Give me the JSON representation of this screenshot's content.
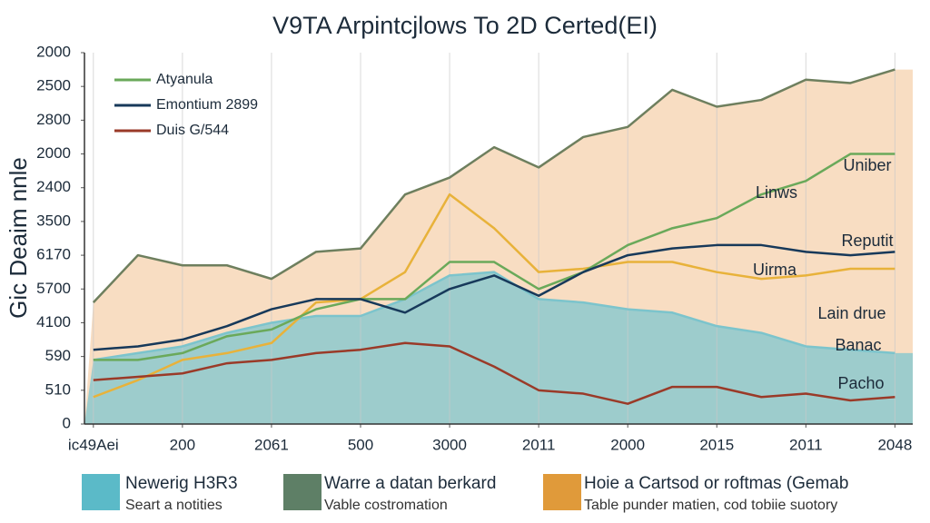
{
  "chart_data": {
    "type": "line",
    "title": "V9TA Arpintcjlows To 2D Certed(EI)",
    "y_label": "Gic Deaim nnle",
    "x": [
      0,
      0.5,
      1,
      1.5,
      2,
      2.5,
      3,
      3.5,
      4,
      4.5,
      5,
      5.5,
      6,
      6.5,
      7,
      7.5,
      8,
      8.5,
      9
    ],
    "xlim": [
      -0.1,
      9.2
    ],
    "xticks": [
      {
        "value": 0,
        "label": "ic49Aei"
      },
      {
        "value": 1,
        "label": "200"
      },
      {
        "value": 2,
        "label": "2061"
      },
      {
        "value": 3,
        "label": "500"
      },
      {
        "value": 4,
        "label": "3000"
      },
      {
        "value": 5,
        "label": "2011"
      },
      {
        "value": 6,
        "label": "2000"
      },
      {
        "value": 7,
        "label": "2015"
      },
      {
        "value": 8,
        "label": "2011"
      },
      {
        "value": 9,
        "label": "2048"
      }
    ],
    "ylim": [
      0,
      11
    ],
    "yticks": [
      {
        "value": 0,
        "label": "0"
      },
      {
        "value": 1,
        "label": "510"
      },
      {
        "value": 2,
        "label": "590"
      },
      {
        "value": 3,
        "label": "4100"
      },
      {
        "value": 4,
        "label": "5700"
      },
      {
        "value": 5,
        "label": "6170"
      },
      {
        "value": 6,
        "label": "3500"
      },
      {
        "value": 7,
        "label": "2400"
      },
      {
        "value": 8,
        "label": "2000"
      },
      {
        "value": 9,
        "label": "2800"
      },
      {
        "value": 10,
        "label": "2500"
      },
      {
        "value": 11,
        "label": "2000"
      }
    ],
    "grid": true,
    "legend": "top-left",
    "series": [
      {
        "color": "#6e7f5e",
        "area_color": "#f6d2ae",
        "values": [
          3.6,
          5.0,
          4.7,
          4.7,
          4.3,
          5.1,
          5.2,
          6.8,
          7.3,
          8.2,
          7.6,
          8.5,
          8.8,
          9.9,
          9.4,
          9.6,
          10.2,
          10.1,
          10.5
        ]
      },
      {
        "color": "#7cc4cc",
        "area_color": "#7fc6cf",
        "values": [
          1.9,
          2.1,
          2.3,
          2.7,
          3.0,
          3.2,
          3.2,
          3.7,
          4.4,
          4.5,
          3.7,
          3.6,
          3.4,
          3.3,
          2.9,
          2.7,
          2.3,
          2.2,
          2.1
        ]
      },
      {
        "color": "#e8b23a",
        "values": [
          0.8,
          1.3,
          1.9,
          2.1,
          2.4,
          3.6,
          3.7,
          4.5,
          6.8,
          5.8,
          4.5,
          4.6,
          4.8,
          4.8,
          4.5,
          4.3,
          4.4,
          4.6,
          4.6
        ]
      },
      {
        "name": "Atyanula",
        "color": "#6aa95a",
        "values": [
          1.9,
          1.9,
          2.1,
          2.6,
          2.8,
          3.4,
          3.7,
          3.7,
          4.8,
          4.8,
          4.0,
          4.5,
          5.3,
          5.8,
          6.1,
          6.8,
          7.2,
          8.0,
          8.0
        ]
      },
      {
        "name": "Emontium 2899",
        "color": "#17395a",
        "values": [
          2.2,
          2.3,
          2.5,
          2.9,
          3.4,
          3.7,
          3.7,
          3.3,
          4.0,
          4.4,
          3.8,
          4.5,
          5.0,
          5.2,
          5.3,
          5.3,
          5.1,
          5.0,
          5.1
        ]
      },
      {
        "name": "Duis G/544",
        "color": "#9a3a28",
        "values": [
          1.3,
          1.4,
          1.5,
          1.8,
          1.9,
          2.1,
          2.2,
          2.4,
          2.3,
          1.7,
          1.0,
          0.9,
          0.6,
          1.1,
          1.1,
          0.8,
          0.9,
          0.7,
          0.8
        ]
      }
    ],
    "annotations": [
      "Uniber",
      "Linws",
      "Reputit",
      "Uirma",
      "Lain drue",
      "Banac",
      "Pacho"
    ],
    "legend_boxes": [
      {
        "title": "Newerig H3R3",
        "text": "Seart a notities",
        "color": "#5bbac8"
      },
      {
        "title": "Warre a datan berkard",
        "text": "Vable costromation",
        "color": "#5e7f66"
      },
      {
        "title": "Hoie a Cartsod or roftmas (Gemab",
        "text": "Table punder matien, cod tobiie suotory",
        "color": "#e09a3a"
      }
    ]
  }
}
